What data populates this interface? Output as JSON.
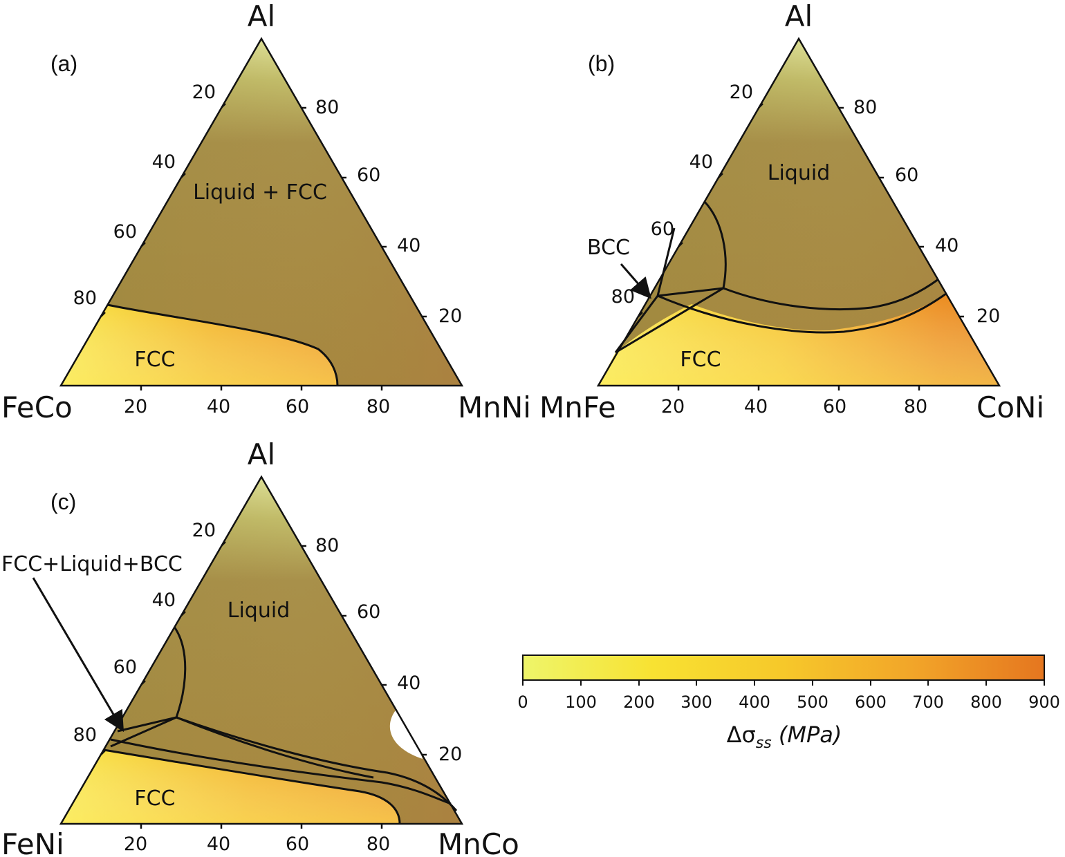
{
  "figure": {
    "panels": [
      {
        "label": "(a)",
        "vertices": {
          "top": "Al",
          "left": "FeCo",
          "right": "MnNi"
        },
        "ticks": {
          "left": [
            "20",
            "40",
            "60",
            "80"
          ],
          "right": [
            "80",
            "60",
            "40",
            "20"
          ],
          "bottom": [
            "20",
            "40",
            "60",
            "80"
          ]
        },
        "regions": [
          "Liquid + FCC",
          "FCC"
        ]
      },
      {
        "label": "(b)",
        "vertices": {
          "top": "Al",
          "left": "MnFe",
          "right": "CoNi"
        },
        "ticks": {
          "left": [
            "20",
            "40",
            "60",
            "80"
          ],
          "right": [
            "80",
            "60",
            "40",
            "20"
          ],
          "bottom": [
            "20",
            "40",
            "60",
            "80"
          ]
        },
        "regions": [
          "Liquid",
          "FCC",
          "BCC"
        ]
      },
      {
        "label": "(c)",
        "vertices": {
          "top": "Al",
          "left": "FeNi",
          "right": "MnCo"
        },
        "ticks": {
          "left": [
            "20",
            "40",
            "60",
            "80"
          ],
          "right": [
            "80",
            "60",
            "40",
            "20"
          ],
          "bottom": [
            "20",
            "40",
            "60",
            "80"
          ]
        },
        "regions": [
          "Liquid",
          "FCC",
          "FCC+Liquid+BCC"
        ]
      }
    ],
    "colorbar": {
      "ticks": [
        "0",
        "100",
        "200",
        "300",
        "400",
        "500",
        "600",
        "700",
        "800",
        "900"
      ],
      "range": [
        0,
        900
      ],
      "label_main": "Δσ",
      "label_sub": "ss",
      "label_unit": " (MPa)",
      "colors": [
        "#eef56a",
        "#f8e232",
        "#f6c82a",
        "#f2a529",
        "#e5761f"
      ]
    },
    "colors": {
      "fcc_light": "#f8e23a",
      "fcc_orange": "#ef9a1f",
      "liquid_top": "#d9de8c",
      "liquid_body": "#a7883e",
      "liquid_brown": "#a57a42"
    }
  }
}
